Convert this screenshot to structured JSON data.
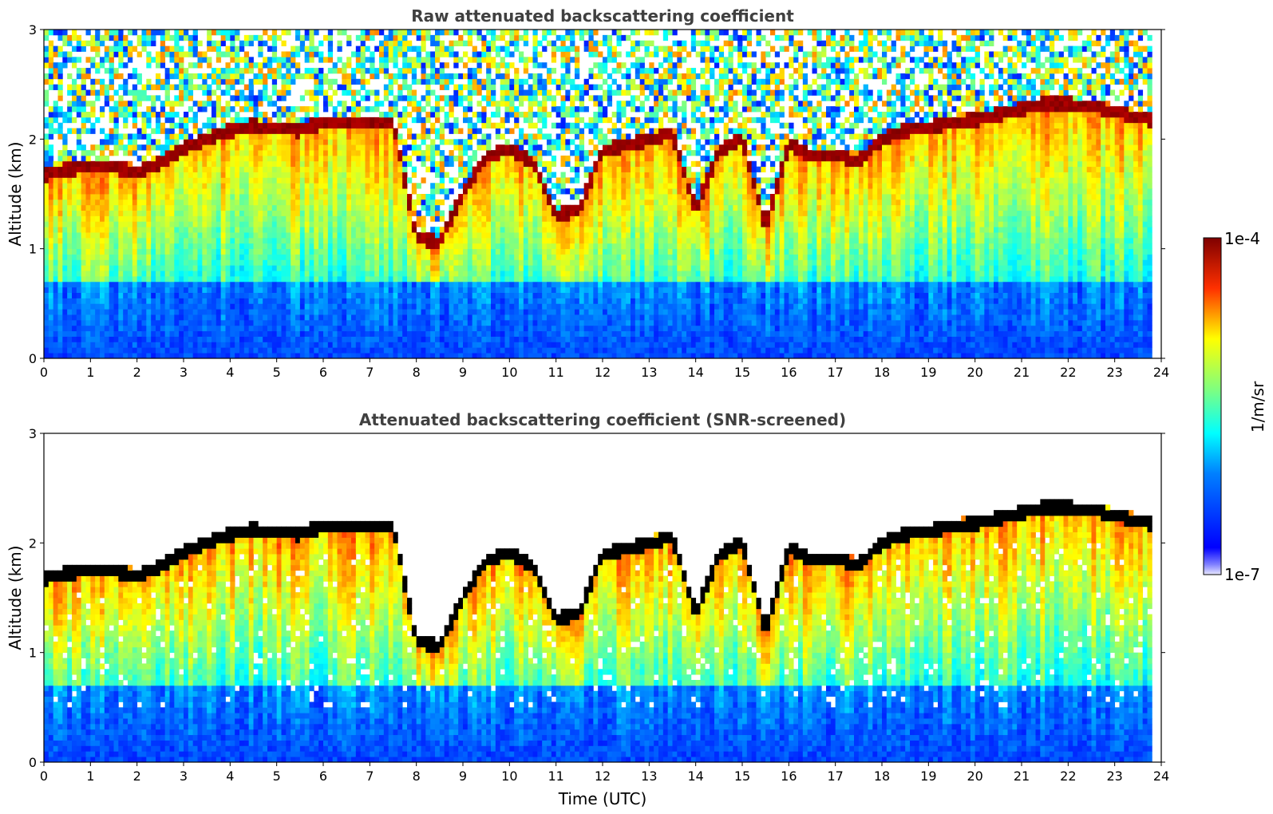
{
  "chart_data": [
    {
      "type": "heatmap",
      "title": "Raw attenuated backscattering coefficient",
      "xlabel": "",
      "ylabel": "Altitude (km)",
      "xlim": [
        0,
        24
      ],
      "ylim": [
        0,
        3
      ],
      "x_ticks": [
        "0",
        "1",
        "2",
        "3",
        "4",
        "5",
        "6",
        "7",
        "8",
        "9",
        "10",
        "11",
        "12",
        "13",
        "14",
        "15",
        "16",
        "17",
        "18",
        "19",
        "20",
        "21",
        "22",
        "23",
        "24"
      ],
      "y_ticks": [
        "0",
        "1",
        "2",
        "3"
      ],
      "color_scale": "jet",
      "log_scale": true,
      "value_range": [
        1e-07,
        0.0001
      ],
      "snr_screened": false,
      "cloud_base_km": {
        "time_utc": [
          0,
          0.5,
          1,
          1.5,
          2,
          2.5,
          3,
          3.5,
          4,
          4.5,
          5,
          5.5,
          6,
          6.5,
          7,
          7.5,
          8,
          8.5,
          9,
          9.5,
          10,
          10.5,
          11,
          11.5,
          12,
          12.5,
          13,
          13.5,
          14,
          14.5,
          15,
          15.5,
          16,
          16.5,
          17,
          17.5,
          18,
          18.5,
          19,
          19.5,
          20,
          20.5,
          21,
          21.5,
          22,
          22.5,
          23,
          23.5,
          23.8
        ],
        "altitude_km": [
          1.68,
          1.72,
          1.76,
          1.75,
          1.7,
          1.78,
          1.92,
          2.0,
          2.08,
          2.12,
          2.1,
          2.08,
          2.15,
          2.15,
          2.15,
          2.15,
          1.1,
          1.05,
          1.5,
          1.85,
          1.9,
          1.8,
          1.3,
          1.35,
          1.9,
          1.95,
          2.0,
          2.05,
          1.35,
          1.9,
          2.0,
          1.2,
          1.95,
          1.85,
          1.85,
          1.8,
          2.0,
          2.08,
          2.1,
          2.15,
          2.18,
          2.22,
          2.28,
          2.32,
          2.32,
          2.3,
          2.25,
          2.2,
          2.18
        ]
      }
    },
    {
      "type": "heatmap",
      "title": "Attenuated backscattering coefficient (SNR-screened)",
      "xlabel": "Time (UTC)",
      "ylabel": "Altitude (km)",
      "xlim": [
        0,
        24
      ],
      "ylim": [
        0,
        3
      ],
      "x_ticks": [
        "0",
        "1",
        "2",
        "3",
        "4",
        "5",
        "6",
        "7",
        "8",
        "9",
        "10",
        "11",
        "12",
        "13",
        "14",
        "15",
        "16",
        "17",
        "18",
        "19",
        "20",
        "21",
        "22",
        "23",
        "24"
      ],
      "y_ticks": [
        "0",
        "1",
        "2",
        "3"
      ],
      "color_scale": "jet",
      "log_scale": true,
      "value_range": [
        1e-07,
        0.0001
      ],
      "snr_screened": true,
      "cloud_base_km": {
        "time_utc": [
          0,
          0.5,
          1,
          1.5,
          2,
          2.5,
          3,
          3.5,
          4,
          4.5,
          5,
          5.5,
          6,
          6.5,
          7,
          7.5,
          8,
          8.5,
          9,
          9.5,
          10,
          10.5,
          11,
          11.5,
          12,
          12.5,
          13,
          13.5,
          14,
          14.5,
          15,
          15.5,
          16,
          16.5,
          17,
          17.5,
          18,
          18.5,
          19,
          19.5,
          20,
          20.5,
          21,
          21.5,
          22,
          22.5,
          23,
          23.5,
          23.8
        ],
        "altitude_km": [
          1.68,
          1.72,
          1.76,
          1.75,
          1.7,
          1.78,
          1.92,
          2.0,
          2.08,
          2.12,
          2.1,
          2.08,
          2.15,
          2.15,
          2.15,
          2.15,
          1.1,
          1.05,
          1.5,
          1.85,
          1.9,
          1.8,
          1.3,
          1.35,
          1.9,
          1.95,
          2.0,
          2.05,
          1.35,
          1.9,
          2.0,
          1.2,
          1.95,
          1.85,
          1.85,
          1.8,
          2.0,
          2.08,
          2.1,
          2.15,
          2.18,
          2.22,
          2.28,
          2.32,
          2.32,
          2.3,
          2.25,
          2.2,
          2.18
        ]
      }
    }
  ],
  "colorbar": {
    "max_label": "1e-4",
    "min_label": "1e-7",
    "unit_label": "1/m/sr",
    "colormap": "jet",
    "colors": [
      "#00008f",
      "#0000ff",
      "#00ffff",
      "#7fff7f",
      "#ffff00",
      "#ff0000",
      "#7f0000"
    ]
  }
}
